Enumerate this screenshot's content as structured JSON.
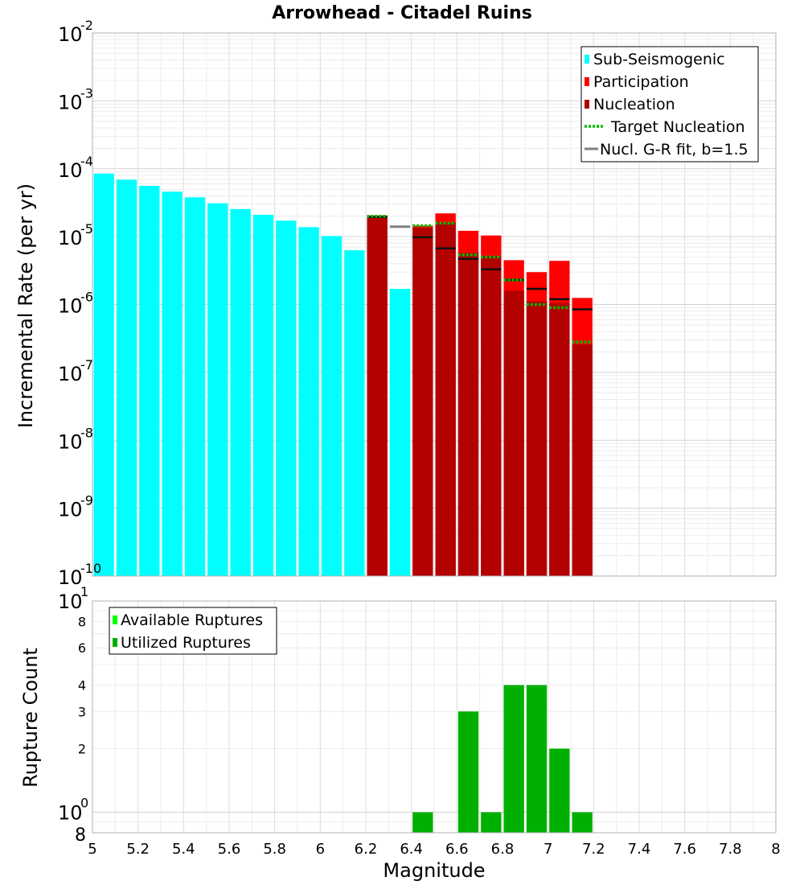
{
  "chart_data": [
    {
      "type": "bar",
      "title": "Arrowhead - Citadel Ruins",
      "ylabel": "Incremental Rate (per yr)",
      "xlabel": "",
      "xlim": [
        5,
        8
      ],
      "yscale": "log",
      "ylim": [
        1e-10,
        0.01
      ],
      "y_tick_labels": [
        {
          "base": "10",
          "exp": "-10"
        },
        {
          "base": "10",
          "exp": "-9"
        },
        {
          "base": "10",
          "exp": "-8"
        },
        {
          "base": "10",
          "exp": "-7"
        },
        {
          "base": "10",
          "exp": "-6"
        },
        {
          "base": "10",
          "exp": "-5"
        },
        {
          "base": "10",
          "exp": "-4"
        },
        {
          "base": "10",
          "exp": "-3"
        },
        {
          "base": "10",
          "exp": "-2"
        }
      ],
      "bin_width": 0.1,
      "grid": true,
      "legend_position": "top-right",
      "legend": [
        {
          "label": "Sub-Seismogenic",
          "color": "#00ffff",
          "kind": "box"
        },
        {
          "label": "Participation",
          "color": "#ff0000",
          "kind": "box"
        },
        {
          "label": "Nucleation",
          "color": "#b30000",
          "kind": "box"
        },
        {
          "label": "Target Nucleation",
          "color": "#00bb00",
          "kind": "dotted"
        },
        {
          "label": "Nucl. G-R fit, b=1.5",
          "color": "#808080",
          "kind": "line"
        }
      ],
      "series": [
        {
          "name": "Sub-Seismogenic",
          "color": "#00ffff",
          "x": [
            5.05,
            5.15,
            5.25,
            5.35,
            5.45,
            5.55,
            5.65,
            5.75,
            5.85,
            5.95,
            6.05,
            6.15,
            6.35
          ],
          "values": [
            8.5e-05,
            6.9e-05,
            5.6e-05,
            4.6e-05,
            3.8e-05,
            3.1e-05,
            2.55e-05,
            2.1e-05,
            1.72e-05,
            1.38e-05,
            1.02e-05,
            6.3e-06,
            1.7e-06
          ]
        },
        {
          "name": "Participation",
          "color": "#ff0000",
          "x": [
            6.25,
            6.45,
            6.55,
            6.65,
            6.75,
            6.85,
            6.95,
            7.05,
            7.15
          ],
          "values": [
            2.05e-05,
            1.45e-05,
            2.2e-05,
            1.22e-05,
            1.04e-05,
            4.5e-06,
            3e-06,
            4.4e-06,
            1.25e-06
          ]
        },
        {
          "name": "Nucleation",
          "color": "#b30000",
          "x": [
            6.25,
            6.45,
            6.55,
            6.65,
            6.75,
            6.85,
            6.95,
            7.05,
            7.15
          ],
          "values": [
            2e-05,
            1.35e-05,
            1.6e-05,
            5.8e-06,
            5.2e-06,
            1.6e-06,
            1.12e-06,
            1.05e-06,
            2.6e-07
          ]
        },
        {
          "name": "Target Nucleation",
          "color": "#00bb00",
          "x": [
            6.25,
            6.45,
            6.55,
            6.65,
            6.75,
            6.85,
            6.95,
            7.05,
            7.15
          ],
          "values": [
            2e-05,
            1.45e-05,
            1.58e-05,
            5.4e-06,
            5e-06,
            2.3e-06,
            1e-06,
            9e-07,
            2.8e-07
          ]
        },
        {
          "name": "Nucleation (dark marker)",
          "color": "#111111",
          "x": [
            6.25,
            6.45,
            6.55,
            6.65,
            6.75,
            6.85,
            6.95,
            7.05,
            7.15
          ],
          "values": [
            1.95e-05,
            9.8e-06,
            6.7e-06,
            4.7e-06,
            3.3e-06,
            2.3e-06,
            1.7e-06,
            1.2e-06,
            8.5e-07
          ]
        },
        {
          "name": "Nucl. G-R fit, b=1.5",
          "color": "#808080",
          "x": [
            6.35
          ],
          "values": [
            1.4e-05
          ]
        }
      ]
    },
    {
      "type": "bar",
      "title": "",
      "ylabel": "Rupture Count",
      "xlabel": "Magnitude",
      "xlim": [
        5,
        8
      ],
      "yscale": "log",
      "ylim": [
        0.8,
        10
      ],
      "x_ticks": [
        "5",
        "5.2",
        "5.4",
        "5.6",
        "5.8",
        "6",
        "6.2",
        "6.4",
        "6.6",
        "6.8",
        "7",
        "7.2",
        "7.4",
        "7.6",
        "7.8",
        "8"
      ],
      "y_minor_tick_labels": [
        "8",
        "2",
        "3",
        "4",
        "6",
        "8"
      ],
      "y_major_tick_labels": [
        {
          "base": "10",
          "exp": "0"
        },
        {
          "base": "10",
          "exp": "1"
        }
      ],
      "bin_width": 0.1,
      "grid": true,
      "legend_position": "top-left",
      "legend": [
        {
          "label": "Available Ruptures",
          "color": "#00ff00",
          "kind": "box"
        },
        {
          "label": "Utilized Ruptures",
          "color": "#00b000",
          "kind": "box"
        }
      ],
      "series": [
        {
          "name": "Utilized Ruptures",
          "color": "#00b000",
          "x": [
            6.45,
            6.65,
            6.75,
            6.85,
            6.95,
            7.05,
            7.15
          ],
          "values": [
            1,
            3,
            1,
            4,
            4,
            2,
            1
          ]
        }
      ]
    }
  ]
}
